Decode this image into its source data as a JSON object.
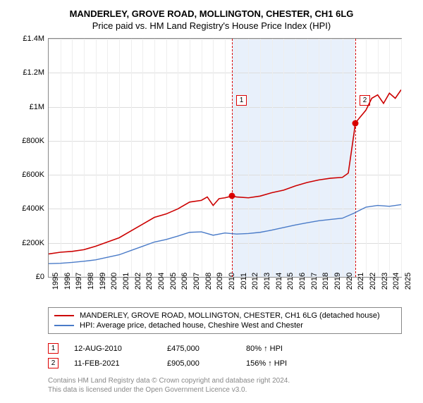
{
  "title": "MANDERLEY, GROVE ROAD, MOLLINGTON, CHESTER, CH1 6LG",
  "subtitle": "Price paid vs. HM Land Registry's House Price Index (HPI)",
  "chart": {
    "type": "line",
    "ylim": [
      0,
      1400000
    ],
    "ytick_step": 200000,
    "ylabels": [
      "£0",
      "£200K",
      "£400K",
      "£600K",
      "£800K",
      "£1M",
      "£1.2M",
      "£1.4M"
    ],
    "xlim": [
      1995,
      2025
    ],
    "xlabels": [
      "1995",
      "1996",
      "1997",
      "1998",
      "1999",
      "2000",
      "2001",
      "2002",
      "2003",
      "2004",
      "2005",
      "2006",
      "2007",
      "2008",
      "2009",
      "2010",
      "2011",
      "2012",
      "2013",
      "2014",
      "2015",
      "2016",
      "2017",
      "2018",
      "2019",
      "2020",
      "2021",
      "2022",
      "2023",
      "2024",
      "2025"
    ],
    "background_color": "#ffffff",
    "grid_color": "#dddddd",
    "shade_start": 2010.6,
    "shade_end": 2021.1,
    "series": [
      {
        "name": "price_paid",
        "color": "#cc0000",
        "width": 1.6,
        "points": [
          [
            1995,
            135000
          ],
          [
            1996,
            145000
          ],
          [
            1997,
            150000
          ],
          [
            1998,
            160000
          ],
          [
            1999,
            180000
          ],
          [
            2000,
            205000
          ],
          [
            2001,
            230000
          ],
          [
            2002,
            270000
          ],
          [
            2003,
            310000
          ],
          [
            2004,
            350000
          ],
          [
            2005,
            370000
          ],
          [
            2006,
            400000
          ],
          [
            2007,
            440000
          ],
          [
            2008,
            450000
          ],
          [
            2008.5,
            470000
          ],
          [
            2009,
            420000
          ],
          [
            2009.5,
            460000
          ],
          [
            2010,
            465000
          ],
          [
            2010.6,
            475000
          ],
          [
            2011,
            470000
          ],
          [
            2012,
            465000
          ],
          [
            2013,
            475000
          ],
          [
            2014,
            495000
          ],
          [
            2015,
            510000
          ],
          [
            2016,
            535000
          ],
          [
            2017,
            555000
          ],
          [
            2018,
            570000
          ],
          [
            2019,
            580000
          ],
          [
            2020,
            585000
          ],
          [
            2020.5,
            610000
          ],
          [
            2021,
            850000
          ],
          [
            2021.1,
            905000
          ],
          [
            2022,
            980000
          ],
          [
            2022.5,
            1050000
          ],
          [
            2023,
            1070000
          ],
          [
            2023.5,
            1020000
          ],
          [
            2024,
            1080000
          ],
          [
            2024.5,
            1050000
          ],
          [
            2025,
            1100000
          ]
        ]
      },
      {
        "name": "hpi",
        "color": "#4a7bc8",
        "width": 1.4,
        "points": [
          [
            1995,
            78000
          ],
          [
            1996,
            80000
          ],
          [
            1997,
            85000
          ],
          [
            1998,
            92000
          ],
          [
            1999,
            100000
          ],
          [
            2000,
            115000
          ],
          [
            2001,
            130000
          ],
          [
            2002,
            155000
          ],
          [
            2003,
            180000
          ],
          [
            2004,
            205000
          ],
          [
            2005,
            220000
          ],
          [
            2006,
            240000
          ],
          [
            2007,
            262000
          ],
          [
            2008,
            265000
          ],
          [
            2009,
            245000
          ],
          [
            2010,
            258000
          ],
          [
            2011,
            252000
          ],
          [
            2012,
            255000
          ],
          [
            2013,
            262000
          ],
          [
            2014,
            275000
          ],
          [
            2015,
            290000
          ],
          [
            2016,
            305000
          ],
          [
            2017,
            318000
          ],
          [
            2018,
            330000
          ],
          [
            2019,
            338000
          ],
          [
            2020,
            345000
          ],
          [
            2021,
            375000
          ],
          [
            2022,
            410000
          ],
          [
            2023,
            420000
          ],
          [
            2024,
            415000
          ],
          [
            2025,
            425000
          ]
        ]
      }
    ],
    "markers": [
      {
        "num": "1",
        "x": 2010.6,
        "y": 475000,
        "box_y": 80
      },
      {
        "num": "2",
        "x": 2021.1,
        "y": 905000,
        "box_y": 80
      }
    ]
  },
  "legend": [
    {
      "color": "#cc0000",
      "text": "MANDERLEY, GROVE ROAD, MOLLINGTON, CHESTER, CH1 6LG (detached house)"
    },
    {
      "color": "#4a7bc8",
      "text": "HPI: Average price, detached house, Cheshire West and Chester"
    }
  ],
  "transactions": [
    {
      "num": "1",
      "date": "12-AUG-2010",
      "price": "£475,000",
      "pct": "80% ↑ HPI"
    },
    {
      "num": "2",
      "date": "11-FEB-2021",
      "price": "£905,000",
      "pct": "156% ↑ HPI"
    }
  ],
  "footer1": "Contains HM Land Registry data © Crown copyright and database right 2024.",
  "footer2": "This data is licensed under the Open Government Licence v3.0."
}
